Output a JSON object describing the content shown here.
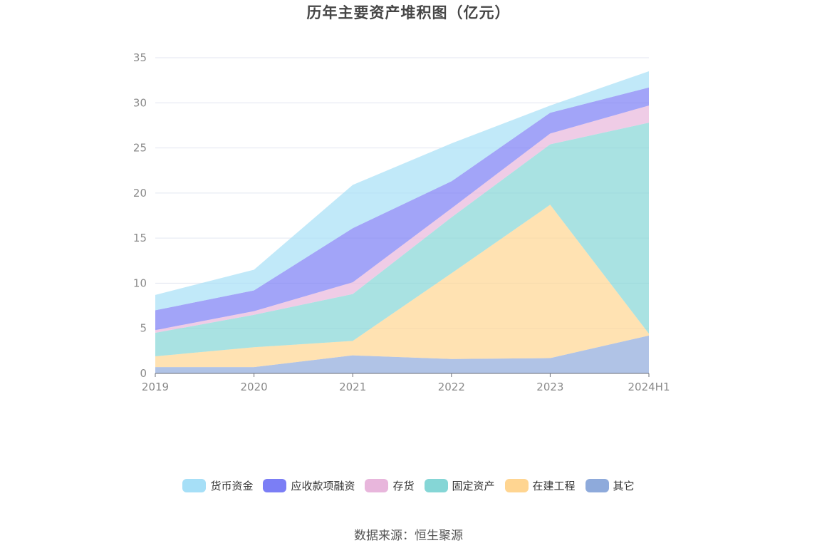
{
  "title": "历年主要资产堆积图（亿元）",
  "source": "数据来源：恒生聚源",
  "chart_data": {
    "type": "area",
    "stacked": true,
    "categories": [
      "2019",
      "2020",
      "2021",
      "2022",
      "2023",
      "2024H1"
    ],
    "ylim": [
      0,
      35
    ],
    "yticks": [
      "0",
      "5",
      "10",
      "15",
      "20",
      "25",
      "30",
      "35"
    ],
    "grid": true,
    "legend_position": "bottom",
    "series": [
      {
        "name": "其它",
        "color": "#8eaadb",
        "values": [
          0.7,
          0.7,
          2.0,
          1.6,
          1.7,
          4.2
        ]
      },
      {
        "name": "在建工程",
        "color": "#ffd591",
        "values": [
          1.2,
          2.2,
          1.6,
          9.5,
          17.0,
          0.2
        ]
      },
      {
        "name": "固定资产",
        "color": "#85d6d6",
        "values": [
          2.6,
          3.6,
          5.2,
          6.2,
          6.7,
          23.4
        ]
      },
      {
        "name": "存货",
        "color": "#e8b6dc",
        "values": [
          0.3,
          0.4,
          1.3,
          1.0,
          1.2,
          1.9
        ]
      },
      {
        "name": "应收款项融资",
        "color": "#7b7ef5",
        "values": [
          2.2,
          2.3,
          6.0,
          3.0,
          2.3,
          2.0
        ]
      },
      {
        "name": "货币资金",
        "color": "#a6dff7",
        "values": [
          1.7,
          2.3,
          4.8,
          4.2,
          0.8,
          1.8
        ]
      }
    ]
  },
  "legend_order": [
    "货币资金",
    "应收款项融资",
    "存货",
    "固定资产",
    "在建工程",
    "其它"
  ]
}
